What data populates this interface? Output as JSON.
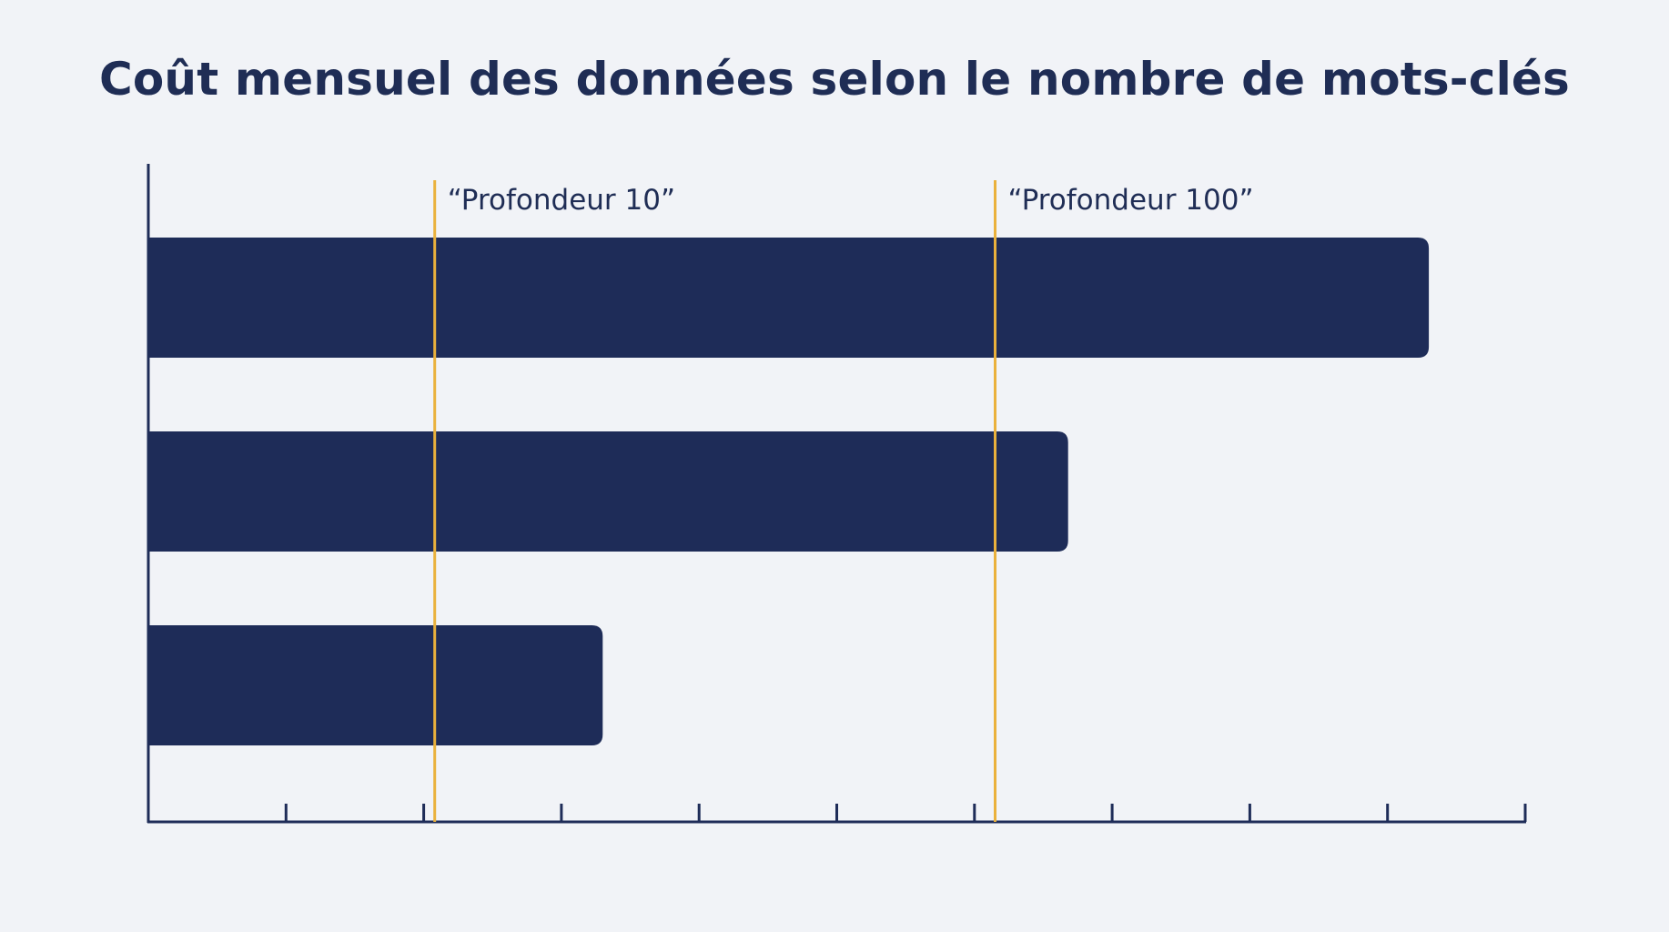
{
  "chart_data": {
    "type": "bar",
    "orientation": "horizontal",
    "title": "Coût mensuel des données selon le nombre de mots-clés",
    "xlabel": "",
    "ylabel": "",
    "xlim": [
      0,
      10
    ],
    "x_tick_count": 10,
    "categories": [
      "",
      "",
      ""
    ],
    "values": [
      9.3,
      6.68,
      3.3
    ],
    "bar_color": "#1e2c58",
    "reference_lines": [
      {
        "label": "“Profondeur 10”",
        "value": 2.08,
        "color": "#eab13c"
      },
      {
        "label": "“Profondeur 100”",
        "value": 6.15,
        "color": "#eab13c"
      }
    ],
    "grid": false,
    "legend": "none"
  }
}
